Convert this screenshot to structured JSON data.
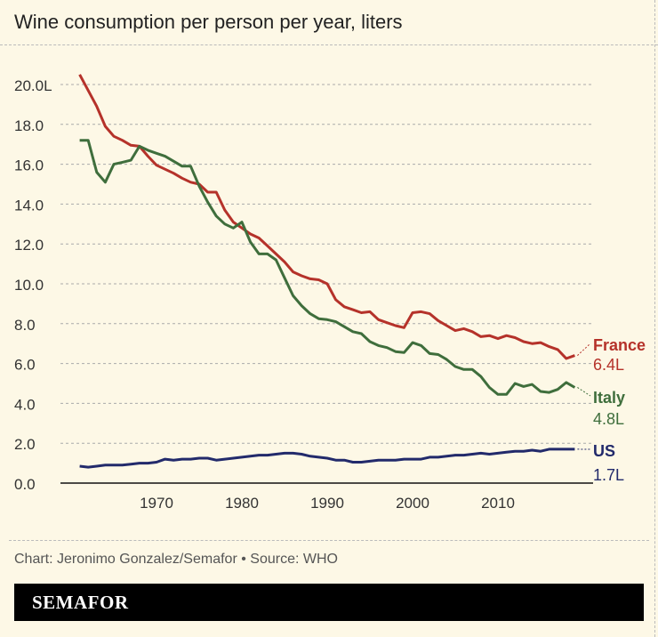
{
  "title": "Wine consumption per person per year, liters",
  "credit": "Chart: Jeronimo Gonzalez/Semafor • Source: WHO",
  "logo": "SEMAFOR",
  "chart_data": {
    "type": "line",
    "title": "Wine consumption per person per year, liters",
    "x_start": 1961,
    "x_end": 2019,
    "xlim": [
      1961,
      2019
    ],
    "ylim": [
      0,
      20
    ],
    "y_ticks": [
      "0.0",
      "2.0",
      "4.0",
      "6.0",
      "8.0",
      "10.0",
      "12.0",
      "14.0",
      "16.0",
      "18.0",
      "20.0L"
    ],
    "y_tick_values": [
      0,
      2,
      4,
      6,
      8,
      10,
      12,
      14,
      16,
      18,
      20
    ],
    "x_ticks": [
      "1970",
      "1980",
      "1990",
      "2000",
      "2010"
    ],
    "x_tick_values": [
      1970,
      1980,
      1990,
      2000,
      2010
    ],
    "grid": true,
    "series": [
      {
        "name": "France",
        "end_label": "6.4L",
        "color": "#b5322a",
        "values": [
          20.5,
          19.7,
          18.9,
          17.9,
          17.4,
          17.2,
          16.95,
          16.9,
          16.4,
          15.95,
          15.75,
          15.55,
          15.3,
          15.1,
          15.0,
          14.6,
          14.6,
          13.7,
          13.1,
          12.8,
          12.5,
          12.3,
          11.9,
          11.5,
          11.1,
          10.6,
          10.4,
          10.25,
          10.2,
          10.0,
          9.2,
          8.85,
          8.7,
          8.55,
          8.6,
          8.2,
          8.05,
          7.9,
          7.8,
          8.55,
          8.6,
          8.5,
          8.15,
          7.9,
          7.65,
          7.75,
          7.6,
          7.35,
          7.4,
          7.25,
          7.4,
          7.3,
          7.1,
          7.0,
          7.05,
          6.85,
          6.7,
          6.25,
          6.4
        ]
      },
      {
        "name": "Italy",
        "end_label": "4.8L",
        "color": "#3f6e3c",
        "values": [
          17.2,
          17.2,
          15.6,
          15.1,
          16.0,
          16.1,
          16.2,
          16.9,
          16.7,
          16.55,
          16.4,
          16.15,
          15.9,
          15.9,
          14.9,
          14.1,
          13.4,
          13.0,
          12.8,
          13.1,
          12.1,
          11.5,
          11.5,
          11.2,
          10.3,
          9.4,
          8.9,
          8.5,
          8.25,
          8.2,
          8.1,
          7.85,
          7.6,
          7.5,
          7.1,
          6.9,
          6.8,
          6.6,
          6.55,
          7.05,
          6.9,
          6.5,
          6.45,
          6.2,
          5.85,
          5.7,
          5.7,
          5.35,
          4.8,
          4.45,
          4.45,
          5.0,
          4.85,
          4.95,
          4.6,
          4.55,
          4.7,
          5.05,
          4.8
        ]
      },
      {
        "name": "US",
        "end_label": "1.7L",
        "color": "#222a6b",
        "values": [
          0.85,
          0.8,
          0.85,
          0.9,
          0.9,
          0.9,
          0.95,
          1.0,
          1.0,
          1.05,
          1.2,
          1.15,
          1.2,
          1.2,
          1.25,
          1.25,
          1.15,
          1.2,
          1.25,
          1.3,
          1.35,
          1.4,
          1.4,
          1.45,
          1.5,
          1.5,
          1.45,
          1.35,
          1.3,
          1.25,
          1.15,
          1.15,
          1.05,
          1.05,
          1.1,
          1.15,
          1.15,
          1.15,
          1.2,
          1.2,
          1.2,
          1.3,
          1.3,
          1.35,
          1.4,
          1.4,
          1.45,
          1.5,
          1.45,
          1.5,
          1.55,
          1.6,
          1.6,
          1.65,
          1.6,
          1.7,
          1.7,
          1.7,
          1.7
        ]
      }
    ]
  }
}
